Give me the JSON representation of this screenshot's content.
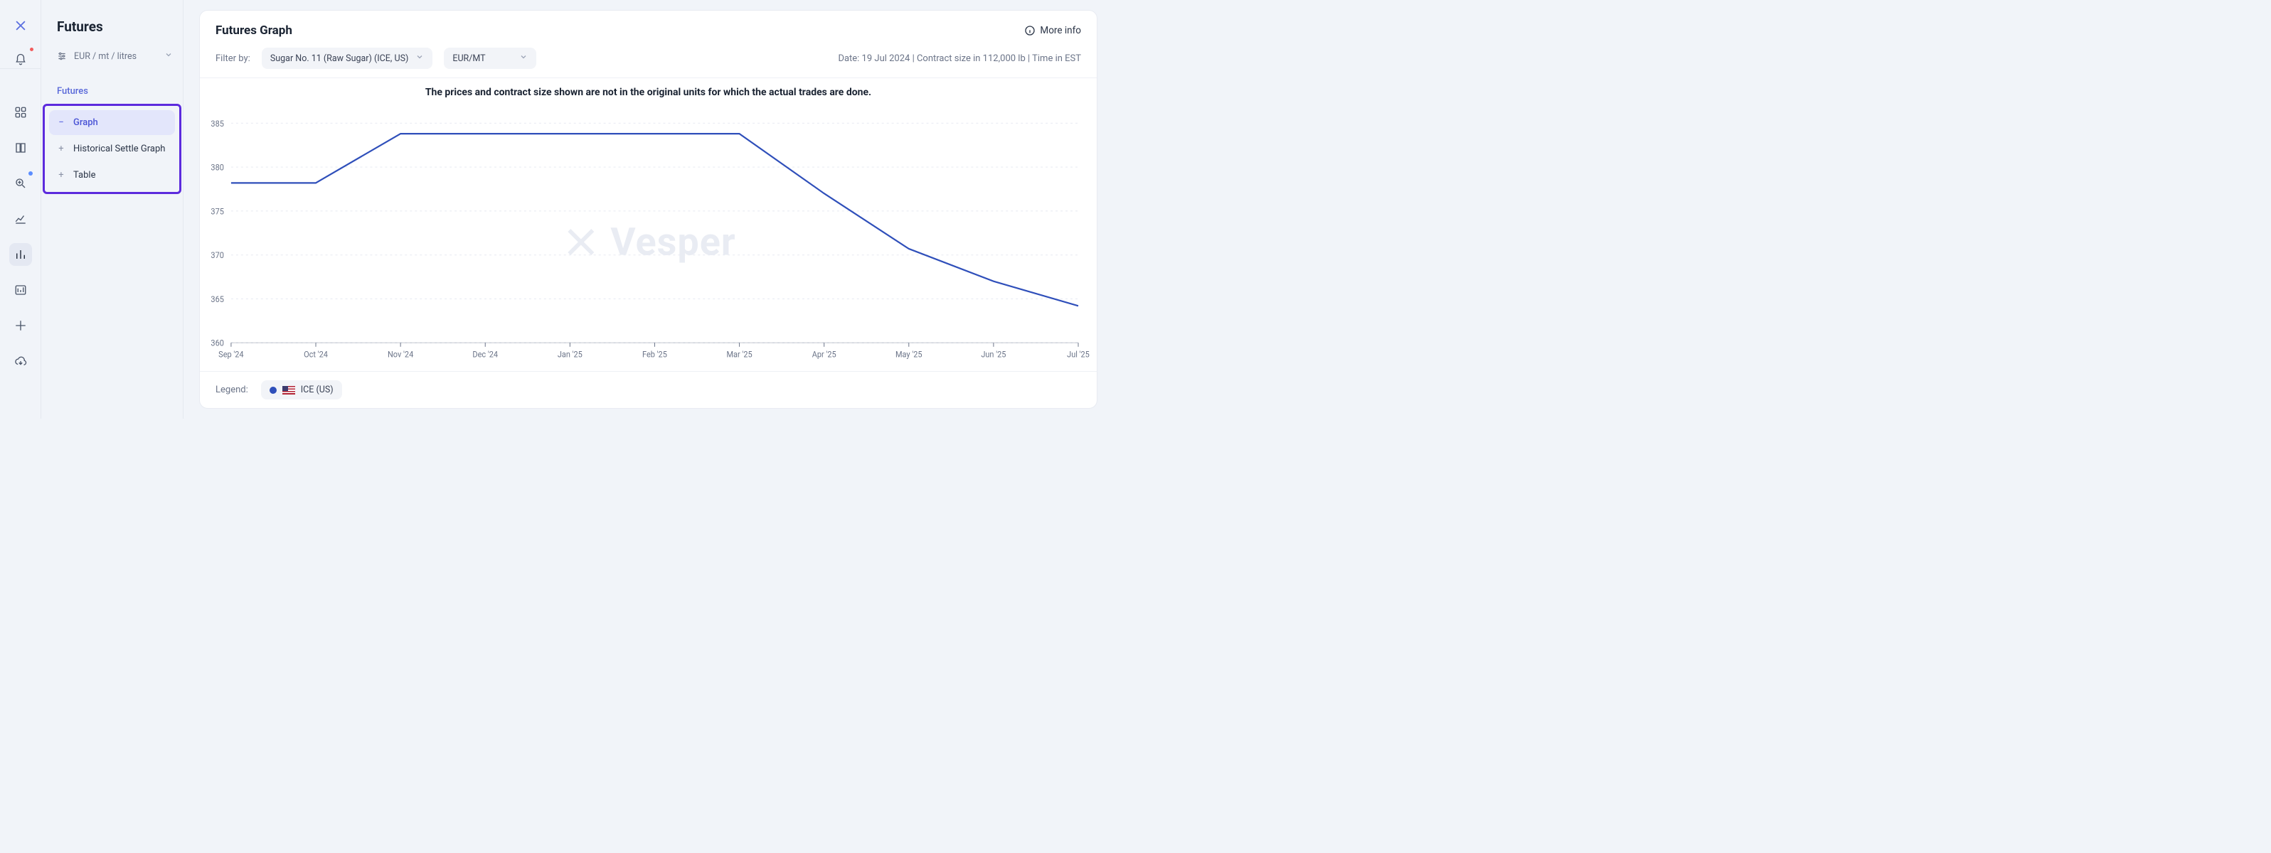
{
  "rail": {
    "bell_has_dot": true,
    "items": [
      {
        "name": "grid-icon",
        "active": false,
        "blue_dot": false
      },
      {
        "name": "book-icon",
        "active": false,
        "blue_dot": false
      },
      {
        "name": "zoom-icon",
        "active": false,
        "blue_dot": true
      },
      {
        "name": "trend-line-icon",
        "active": false,
        "blue_dot": false
      },
      {
        "name": "bar-chart-icon",
        "active": true,
        "blue_dot": false
      },
      {
        "name": "panel-chart-icon",
        "active": false,
        "blue_dot": false
      },
      {
        "name": "crosshair-icon",
        "active": false,
        "blue_dot": false
      },
      {
        "name": "cloud-download-icon",
        "active": false,
        "blue_dot": false
      }
    ]
  },
  "sidebar": {
    "title": "Futures",
    "units_label": "EUR / mt / litres",
    "section_label": "Futures",
    "items": [
      {
        "label": "Graph",
        "active": true,
        "icon": "minus-icon"
      },
      {
        "label": "Historical Settle Graph",
        "active": false,
        "icon": "plus-icon"
      },
      {
        "label": "Table",
        "active": false,
        "icon": "plus-icon"
      }
    ]
  },
  "header": {
    "title": "Futures Graph",
    "more_info": "More info"
  },
  "filters": {
    "label": "Filter by:",
    "product": "Sugar No. 11 (Raw Sugar) (ICE, US)",
    "unit": "EUR/MT",
    "meta": "Date: 19 Jul 2024 | Contract size in 112,000 lb | Time in EST"
  },
  "chart": {
    "banner": "The prices and contract size shown are not in the original units for which the actual trades are done.",
    "watermark": "Vesper",
    "y_axis": {
      "min": 360,
      "max": 385,
      "step": 5,
      "ticks": [
        360,
        365,
        370,
        375,
        380,
        385
      ]
    },
    "x_labels": [
      "Sep '24",
      "Oct '24",
      "Nov '24",
      "Dec '24",
      "Jan '25",
      "Feb '25",
      "Mar '25",
      "Apr '25",
      "May '25",
      "Jun '25",
      "Jul '25"
    ],
    "series": {
      "color": "#2f4fba",
      "line_width": 2,
      "points": [
        {
          "x": 0,
          "y": 378.2
        },
        {
          "x": 1,
          "y": 378.2
        },
        {
          "x": 2,
          "y": 383.8
        },
        {
          "x": 3,
          "y": 383.8
        },
        {
          "x": 4,
          "y": 383.8
        },
        {
          "x": 5,
          "y": 383.8
        },
        {
          "x": 6,
          "y": 383.8
        },
        {
          "x": 7,
          "y": 377.0
        },
        {
          "x": 8,
          "y": 370.7
        },
        {
          "x": 9,
          "y": 367.0
        },
        {
          "x": 10,
          "y": 364.2
        }
      ]
    },
    "grid_color": "#e9ecf3",
    "axis_text_color": "#6b7488",
    "background": "#ffffff"
  },
  "legend": {
    "label": "Legend:",
    "items": [
      {
        "label": "ICE (US)",
        "color": "#2f4fba",
        "flag": "us"
      }
    ]
  }
}
